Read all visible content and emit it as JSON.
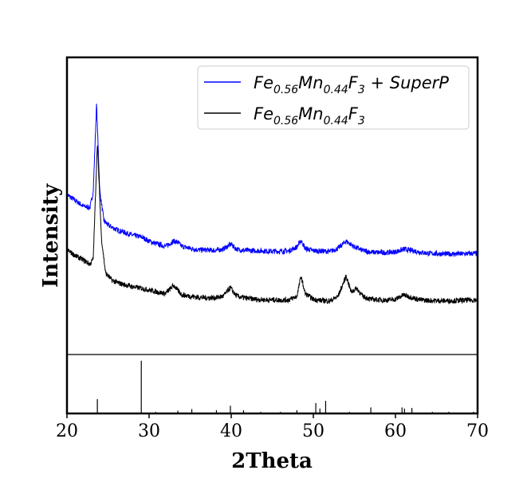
{
  "chart_data": {
    "type": "line",
    "xlabel": "2Theta",
    "ylabel": "Intensity",
    "xlim": [
      20,
      70
    ],
    "xticks": [
      20,
      30,
      40,
      50,
      60,
      70
    ],
    "grid": false,
    "legend_placement": "top-right",
    "legend": [
      {
        "key": "composite",
        "color": "#0000ff",
        "prefix": "Fe",
        "sub1": "0.56",
        "mid": "Mn",
        "sub2": "0.44",
        "mid2": "F",
        "sub3": "3",
        "suffix": " + SuperP"
      },
      {
        "key": "pristine",
        "color": "#000000",
        "prefix": "Fe",
        "sub1": "0.56",
        "mid": "Mn",
        "sub2": "0.44",
        "mid2": "F",
        "sub3": "3",
        "suffix": ""
      }
    ],
    "series": [
      {
        "key": "composite",
        "color": "#0000ff",
        "points": [
          [
            20,
            0.55
          ],
          [
            21,
            0.53
          ],
          [
            22,
            0.51
          ],
          [
            22.8,
            0.505
          ],
          [
            23.2,
            0.56
          ],
          [
            23.6,
            0.86
          ],
          [
            24,
            0.56
          ],
          [
            24.5,
            0.46
          ],
          [
            25,
            0.445
          ],
          [
            26,
            0.43
          ],
          [
            27,
            0.42
          ],
          [
            28,
            0.41
          ],
          [
            29,
            0.405
          ],
          [
            29.5,
            0.398
          ],
          [
            30,
            0.39
          ],
          [
            31,
            0.38
          ],
          [
            32,
            0.372
          ],
          [
            33,
            0.39
          ],
          [
            33.5,
            0.385
          ],
          [
            34,
            0.372
          ],
          [
            35,
            0.365
          ],
          [
            36,
            0.36
          ],
          [
            37,
            0.36
          ],
          [
            38,
            0.358
          ],
          [
            39,
            0.362
          ],
          [
            40,
            0.38
          ],
          [
            40.5,
            0.365
          ],
          [
            41,
            0.36
          ],
          [
            42,
            0.358
          ],
          [
            43,
            0.357
          ],
          [
            44,
            0.356
          ],
          [
            45,
            0.355
          ],
          [
            46,
            0.355
          ],
          [
            47,
            0.356
          ],
          [
            48,
            0.37
          ],
          [
            48.5,
            0.392
          ],
          [
            49,
            0.365
          ],
          [
            50,
            0.357
          ],
          [
            51,
            0.356
          ],
          [
            52,
            0.354
          ],
          [
            53,
            0.365
          ],
          [
            54,
            0.39
          ],
          [
            55,
            0.37
          ],
          [
            56,
            0.358
          ],
          [
            57,
            0.352
          ],
          [
            58,
            0.351
          ],
          [
            59,
            0.351
          ],
          [
            60,
            0.353
          ],
          [
            61,
            0.362
          ],
          [
            62,
            0.358
          ],
          [
            63,
            0.352
          ],
          [
            64,
            0.348
          ],
          [
            65,
            0.347
          ],
          [
            66,
            0.346
          ],
          [
            67,
            0.346
          ],
          [
            68,
            0.346
          ],
          [
            69,
            0.347
          ],
          [
            70,
            0.348
          ]
        ]
      },
      {
        "key": "pristine",
        "color": "#000000",
        "points": [
          [
            20,
            0.36
          ],
          [
            21,
            0.34
          ],
          [
            22,
            0.325
          ],
          [
            22.8,
            0.31
          ],
          [
            23.2,
            0.33
          ],
          [
            23.7,
            0.73
          ],
          [
            24.2,
            0.4
          ],
          [
            24.7,
            0.28
          ],
          [
            25.5,
            0.255
          ],
          [
            26,
            0.248
          ],
          [
            27,
            0.24
          ],
          [
            28,
            0.233
          ],
          [
            29,
            0.228
          ],
          [
            30,
            0.222
          ],
          [
            31,
            0.215
          ],
          [
            32,
            0.21
          ],
          [
            33,
            0.238
          ],
          [
            33.5,
            0.22
          ],
          [
            34,
            0.205
          ],
          [
            35,
            0.2
          ],
          [
            36,
            0.197
          ],
          [
            37,
            0.195
          ],
          [
            38,
            0.195
          ],
          [
            39,
            0.2
          ],
          [
            39.9,
            0.23
          ],
          [
            40.5,
            0.205
          ],
          [
            41,
            0.198
          ],
          [
            42,
            0.193
          ],
          [
            43,
            0.19
          ],
          [
            44,
            0.188
          ],
          [
            45,
            0.188
          ],
          [
            46,
            0.187
          ],
          [
            47,
            0.188
          ],
          [
            48,
            0.2
          ],
          [
            48.5,
            0.27
          ],
          [
            49,
            0.21
          ],
          [
            50,
            0.19
          ],
          [
            51,
            0.186
          ],
          [
            52,
            0.184
          ],
          [
            53,
            0.2
          ],
          [
            54,
            0.27
          ],
          [
            54.6,
            0.215
          ],
          [
            55.3,
            0.228
          ],
          [
            56,
            0.2
          ],
          [
            57,
            0.19
          ],
          [
            58,
            0.188
          ],
          [
            59,
            0.187
          ],
          [
            60,
            0.19
          ],
          [
            61,
            0.205
          ],
          [
            62,
            0.196
          ],
          [
            63,
            0.188
          ],
          [
            64,
            0.186
          ],
          [
            65,
            0.185
          ],
          [
            66,
            0.185
          ],
          [
            67,
            0.185
          ],
          [
            68,
            0.186
          ],
          [
            69,
            0.187
          ],
          [
            70,
            0.188
          ]
        ]
      }
    ],
    "reference_lines": [
      {
        "x": 23.7,
        "intensity": 0.26
      },
      {
        "x": 29.05,
        "intensity": 0.96
      },
      {
        "x": 30.8,
        "intensity": 0.03
      },
      {
        "x": 33.5,
        "intensity": 0.05
      },
      {
        "x": 35.2,
        "intensity": 0.08
      },
      {
        "x": 38.2,
        "intensity": 0.06
      },
      {
        "x": 39.9,
        "intensity": 0.14
      },
      {
        "x": 41.5,
        "intensity": 0.06
      },
      {
        "x": 43.6,
        "intensity": 0.03
      },
      {
        "x": 46.0,
        "intensity": 0.03
      },
      {
        "x": 48.0,
        "intensity": 0.06
      },
      {
        "x": 50.3,
        "intensity": 0.19
      },
      {
        "x": 50.8,
        "intensity": 0.09
      },
      {
        "x": 51.5,
        "intensity": 0.23
      },
      {
        "x": 54.4,
        "intensity": 0.03
      },
      {
        "x": 57.0,
        "intensity": 0.11
      },
      {
        "x": 60.8,
        "intensity": 0.11
      },
      {
        "x": 61.1,
        "intensity": 0.09
      },
      {
        "x": 62.0,
        "intensity": 0.1
      },
      {
        "x": 64.5,
        "intensity": 0.03
      },
      {
        "x": 66.5,
        "intensity": 0.03
      },
      {
        "x": 69.5,
        "intensity": 0.03
      }
    ]
  }
}
